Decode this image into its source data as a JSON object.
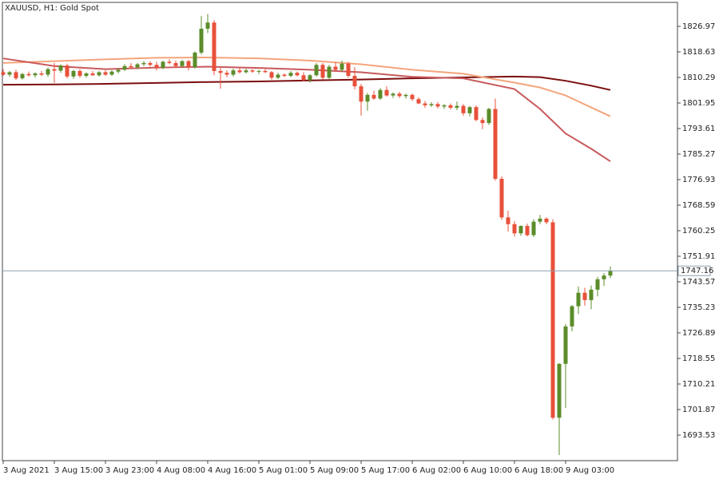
{
  "chart_data": {
    "type": "candlestick",
    "title": "XAUUSD, H1:  Gold Spot",
    "categories": [
      "3 Aug 2021",
      null,
      null,
      null,
      null,
      null,
      null,
      null,
      "3 Aug 15:00",
      null,
      null,
      null,
      null,
      null,
      null,
      null,
      "3 Aug 23:00",
      null,
      null,
      null,
      null,
      null,
      null,
      null,
      "4 Aug 08:00",
      null,
      null,
      null,
      null,
      null,
      null,
      null,
      "4 Aug 16:00",
      null,
      null,
      null,
      null,
      null,
      null,
      null,
      "5 Aug 01:00",
      null,
      null,
      null,
      null,
      null,
      null,
      null,
      "5 Aug 09:00",
      null,
      null,
      null,
      null,
      null,
      null,
      null,
      "5 Aug 17:00",
      null,
      null,
      null,
      null,
      null,
      null,
      null,
      "6 Aug 02:00",
      null,
      null,
      null,
      null,
      null,
      null,
      null,
      "6 Aug 10:00",
      null,
      null,
      null,
      null,
      null,
      null,
      null,
      "6 Aug 18:00",
      null,
      null,
      null,
      null,
      null,
      null,
      null,
      "9 Aug 03:00",
      null,
      null,
      null,
      null,
      null,
      null,
      null
    ],
    "open": [
      1812.0,
      1811.2,
      1812.0,
      1810.0,
      1811.4,
      1811.0,
      1811.6,
      1811.2,
      1813.0,
      1812.5,
      1814.2,
      1810.6,
      1812.4,
      1810.8,
      1811.6,
      1811.0,
      1812.0,
      1811.2,
      1812.2,
      1812.8,
      1814.0,
      1813.6,
      1814.6,
      1815.0,
      1814.4,
      1813.4,
      1815.4,
      1815.0,
      1814.0,
      1815.6,
      1813.6,
      1818.4,
      1826.2,
      1828.2,
      1812.4,
      1811.8,
      1811.2,
      1812.6,
      1812.0,
      1812.6,
      1812.2,
      1812.4,
      1812.0,
      1810.2,
      1811.2,
      1810.8,
      1811.8,
      1811.0,
      1809.4,
      1811.0,
      1814.4,
      1810.2,
      1813.8,
      1812.8,
      1814.8,
      1810.8,
      1807.4,
      1802.4,
      1804.6,
      1803.4,
      1806.2,
      1804.4,
      1805.0,
      1804.2,
      1804.6,
      1803.2,
      1801.8,
      1801.2,
      1801.6,
      1800.8,
      1801.2,
      1800.4,
      1801.0,
      1798.6,
      1800.6,
      1796.4,
      1795.4,
      1800.0,
      1777.2,
      1764.6,
      1762.4,
      1759.4,
      1761.8,
      1758.8,
      1763.2,
      1764.2,
      1763.0,
      1699.2,
      1716.8,
      1729.0,
      1735.6,
      1740.0,
      1737.6,
      1741.0,
      1744.4,
      1745.6
    ],
    "high": [
      1813.0,
      1812.4,
      1812.8,
      1811.8,
      1812.2,
      1812.0,
      1812.4,
      1813.5,
      1815.0,
      1814.6,
      1814.8,
      1812.8,
      1813.0,
      1812.0,
      1812.4,
      1812.4,
      1812.6,
      1812.6,
      1813.4,
      1814.6,
      1815.0,
      1815.0,
      1815.6,
      1815.6,
      1815.4,
      1815.8,
      1816.2,
      1815.8,
      1816.0,
      1816.0,
      1818.8,
      1830.4,
      1831.0,
      1829.0,
      1813.4,
      1812.6,
      1813.2,
      1813.4,
      1813.2,
      1813.0,
      1812.8,
      1813.0,
      1812.4,
      1811.8,
      1811.6,
      1812.4,
      1812.2,
      1812.0,
      1811.4,
      1815.0,
      1815.0,
      1814.4,
      1815.2,
      1815.8,
      1815.4,
      1813.6,
      1808.2,
      1805.2,
      1806.0,
      1806.8,
      1807.4,
      1805.4,
      1805.6,
      1805.0,
      1805.0,
      1803.8,
      1802.6,
      1802.2,
      1802.2,
      1801.6,
      1801.8,
      1802.4,
      1801.6,
      1801.0,
      1801.2,
      1797.2,
      1800.4,
      1803.4,
      1778.0,
      1766.8,
      1763.4,
      1762.0,
      1762.6,
      1764.0,
      1765.4,
      1764.6,
      1764.0,
      1717.0,
      1729.8,
      1736.0,
      1742.0,
      1741.6,
      1742.4,
      1745.2,
      1746.4,
      1748.6
    ],
    "low": [
      1810.8,
      1810.5,
      1809.5,
      1809.6,
      1810.6,
      1810.2,
      1810.8,
      1810.5,
      1808.5,
      1811.8,
      1810.0,
      1809.8,
      1810.2,
      1810.2,
      1810.8,
      1810.6,
      1810.8,
      1810.8,
      1811.6,
      1812.4,
      1813.2,
      1813.0,
      1814.0,
      1813.8,
      1812.6,
      1813.0,
      1814.6,
      1813.4,
      1813.6,
      1812.6,
      1813.2,
      1817.8,
      1824.8,
      1811.0,
      1806.6,
      1810.4,
      1810.6,
      1811.6,
      1811.6,
      1811.8,
      1811.4,
      1811.8,
      1809.6,
      1809.8,
      1810.4,
      1810.4,
      1810.6,
      1809.0,
      1808.6,
      1810.6,
      1809.6,
      1809.8,
      1812.4,
      1812.2,
      1810.2,
      1806.4,
      1797.8,
      1799.4,
      1803.0,
      1803.0,
      1804.0,
      1803.6,
      1803.6,
      1803.4,
      1802.6,
      1801.6,
      1800.4,
      1800.6,
      1800.2,
      1800.0,
      1799.8,
      1799.6,
      1797.8,
      1797.6,
      1796.0,
      1793.4,
      1794.8,
      1776.6,
      1763.8,
      1760.0,
      1758.4,
      1758.6,
      1758.4,
      1758.2,
      1762.4,
      1762.4,
      1698.6,
      1687.0,
      1702.4,
      1727.4,
      1733.0,
      1735.8,
      1734.6,
      1738.8,
      1742.2,
      1744.8
    ],
    "close": [
      1811.2,
      1812.0,
      1810.0,
      1811.4,
      1811.0,
      1811.6,
      1811.2,
      1813.0,
      1812.5,
      1814.2,
      1810.6,
      1812.4,
      1810.8,
      1811.6,
      1811.0,
      1812.0,
      1811.2,
      1812.2,
      1812.8,
      1814.0,
      1813.6,
      1814.6,
      1815.0,
      1814.4,
      1813.4,
      1815.4,
      1815.0,
      1814.0,
      1815.6,
      1813.6,
      1818.4,
      1826.2,
      1828.2,
      1812.4,
      1811.8,
      1811.2,
      1812.6,
      1812.0,
      1812.6,
      1812.2,
      1812.4,
      1812.0,
      1810.2,
      1811.2,
      1810.8,
      1811.8,
      1811.0,
      1809.4,
      1811.0,
      1814.4,
      1810.2,
      1813.8,
      1812.8,
      1814.8,
      1810.8,
      1807.4,
      1802.4,
      1804.6,
      1803.4,
      1806.2,
      1804.4,
      1805.0,
      1804.2,
      1804.6,
      1803.2,
      1801.8,
      1801.2,
      1801.6,
      1800.8,
      1801.2,
      1800.4,
      1801.0,
      1798.6,
      1800.6,
      1796.4,
      1795.4,
      1800.0,
      1777.2,
      1764.6,
      1762.4,
      1759.4,
      1761.8,
      1758.8,
      1763.2,
      1764.2,
      1763.0,
      1699.2,
      1716.8,
      1729.0,
      1735.6,
      1740.0,
      1737.6,
      1741.0,
      1744.4,
      1745.6,
      1747.16
    ],
    "up_color": "#5b8c2a",
    "down_color": "#e8503a",
    "moving_averages": [
      {
        "color": "#7b0d0d",
        "x": [
          0,
          8,
          16,
          24,
          32,
          40,
          48,
          56,
          64,
          72,
          80,
          84,
          88,
          92,
          95
        ],
        "values": [
          1807.9,
          1808.0,
          1808.2,
          1808.5,
          1808.8,
          1809.0,
          1809.3,
          1809.6,
          1810.0,
          1810.3,
          1810.6,
          1810.4,
          1809.2,
          1807.6,
          1806.2
        ]
      },
      {
        "color": "#f4a57c",
        "x": [
          0,
          8,
          16,
          24,
          32,
          40,
          48,
          56,
          64,
          72,
          80,
          84,
          88,
          92,
          95
        ],
        "values": [
          1815.0,
          1815.6,
          1816.2,
          1816.7,
          1816.8,
          1816.5,
          1815.8,
          1814.6,
          1812.8,
          1811.5,
          1808.6,
          1807.0,
          1804.4,
          1800.5,
          1797.6
        ]
      },
      {
        "color": "#c8595c",
        "x": [
          0,
          8,
          16,
          24,
          32,
          40,
          48,
          56,
          64,
          72,
          80,
          84,
          88,
          92,
          95
        ],
        "values": [
          1816.5,
          1814.0,
          1813.0,
          1813.5,
          1813.8,
          1813.4,
          1812.8,
          1812.0,
          1810.5,
          1810.0,
          1806.5,
          1800.0,
          1792.0,
          1787.0,
          1782.9
        ]
      }
    ],
    "current_price": 1747.16,
    "current_price_color": "#8c9fb0",
    "ylim": [
      1685.19,
      1834.79
    ],
    "yticks": [
      1826.97,
      1818.63,
      1810.29,
      1801.95,
      1793.61,
      1785.27,
      1776.93,
      1768.59,
      1760.25,
      1751.91,
      1743.57,
      1735.23,
      1726.89,
      1718.55,
      1710.21,
      1701.87,
      1693.53
    ]
  }
}
